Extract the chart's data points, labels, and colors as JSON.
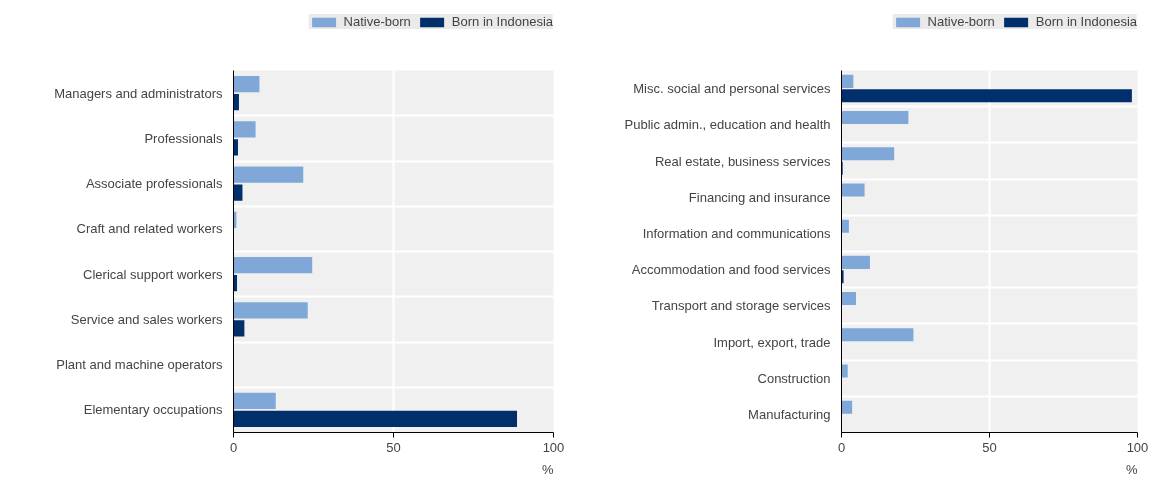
{
  "chart_data": [
    {
      "type": "bar",
      "orientation": "horizontal",
      "categories": [
        "Managers and administrators",
        "Professionals",
        "Associate professionals",
        "Craft and related workers",
        "Clerical support workers",
        "Service and sales workers",
        "Plant and machine operators",
        "Elementary occupations"
      ],
      "series": [
        {
          "name": "Native-born",
          "color": "#7fa8d9",
          "values": [
            8.1,
            6.9,
            21.8,
            0.9,
            24.6,
            23.2,
            null,
            13.2
          ]
        },
        {
          "name": "Born in Indonesia",
          "color": "#002f6c",
          "values": [
            1.7,
            1.4,
            2.8,
            0,
            1.1,
            3.4,
            0,
            88.6
          ]
        }
      ],
      "xlim": [
        0,
        100
      ],
      "xticks": [
        0,
        50,
        100
      ],
      "xlabel": "%",
      "grid": true,
      "legend": "top"
    },
    {
      "type": "bar",
      "orientation": "horizontal",
      "categories": [
        "Misc. social and personal services",
        "Public admin., education and health",
        "Real estate, business services",
        "Financing and insurance",
        "Information and communications",
        "Accommodation and food services",
        "Transport and storage services",
        "Import, export, trade",
        "Construction",
        "Manufacturing"
      ],
      "series": [
        {
          "name": "Native-born",
          "color": "#7fa8d9",
          "values": [
            4.0,
            22.6,
            17.8,
            7.8,
            2.5,
            9.6,
            4.9,
            24.3,
            2.1,
            3.6
          ]
        },
        {
          "name": "Born in Indonesia",
          "color": "#002f6c",
          "values": [
            98.1,
            0,
            0.4,
            0,
            0,
            0.7,
            0,
            null,
            0,
            0
          ]
        }
      ],
      "xlim": [
        0,
        100
      ],
      "xticks": [
        0,
        50,
        100
      ],
      "xlabel": "%",
      "grid": true,
      "legend": "top"
    }
  ]
}
